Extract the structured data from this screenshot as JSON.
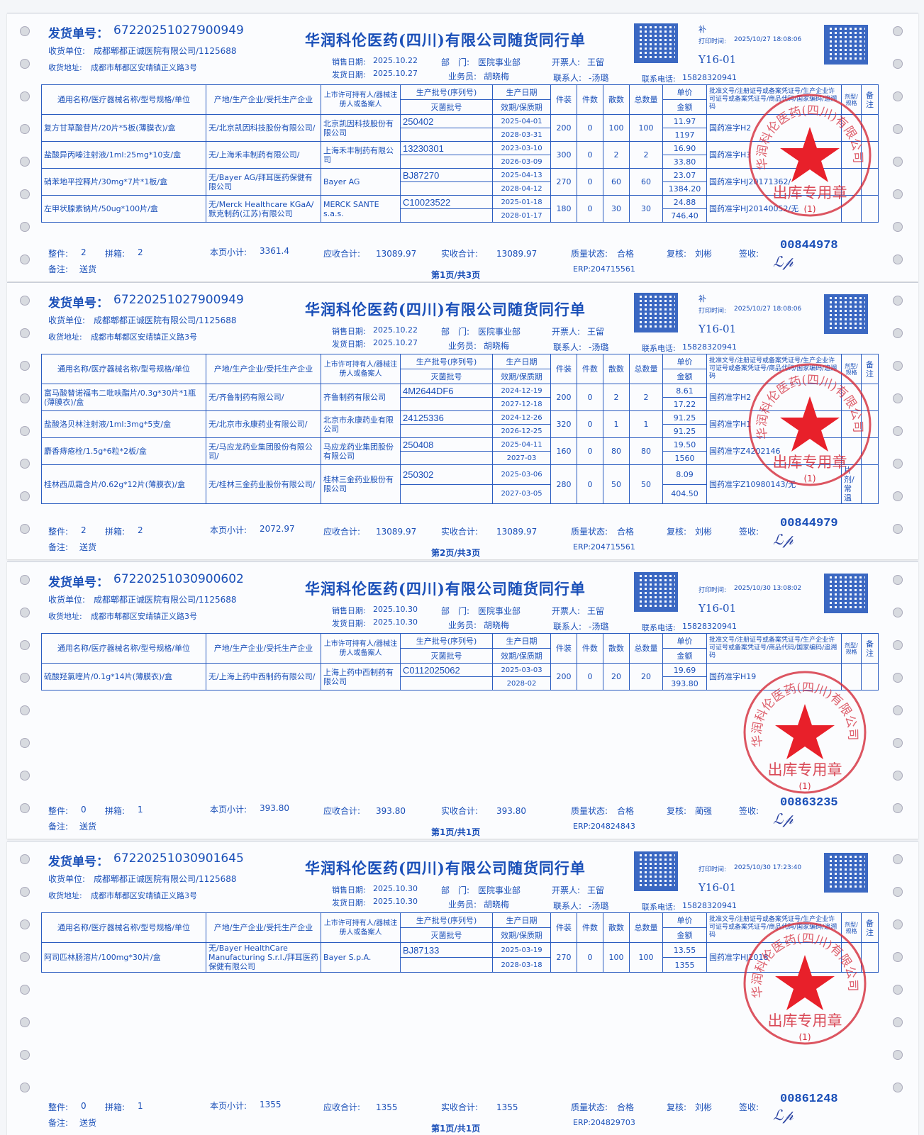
{
  "colors": {
    "ink": "#1a4fb8",
    "stamp": "#d42a3a",
    "star": "#e8202a"
  },
  "labels": {
    "no": "发货单号：",
    "recv": "收货单位:",
    "addr": "收货地址:",
    "sale_date": "销售日期:",
    "ship_date": "发货日期:",
    "dept": "部　门:",
    "sales": "业务员:",
    "issuer": "开票人:",
    "contact": "联系人:",
    "phone": "联系电话:",
    "print_time": "打印时间:",
    "whole": "整件:",
    "split": "拼箱:",
    "page_sub": "本页小计:",
    "receivable": "应收合计:",
    "received": "实收合计:",
    "quality": "质量状态:",
    "review": "复核:",
    "sign": "签收:",
    "remark": "备注:"
  },
  "headers": {
    "name": "通用名称/医疗器械名称/型号规格/单位",
    "origin": "产地/生产企业/受托生产企业",
    "holder": "上市许可持有人/器械注册人或备案人",
    "batch": "生产批号(序列号)",
    "steril": "灭菌批号",
    "prod": "生产日期",
    "exp": "效期/保质期",
    "pack": "件装",
    "pieces": "件数",
    "loose": "散数",
    "total": "总数量",
    "price": "单价",
    "amount": "金额",
    "approval": "批准文号/注册证号或备案凭证号/生产企业许可证号或备案凭证号/商品代码/国家编码/追溯码",
    "form": "剂型/规格",
    "note": "备注"
  },
  "stamp": {
    "ring": "华润科伦医药(四川)有限公司",
    "center": "出库专用章",
    "num": "(1)"
  },
  "forms": [
    {
      "no": "67220251027900949",
      "title": "华润科伦医药(四川)有限公司随货同行单",
      "recv": "成都郫都正诚医院有限公司/1125688",
      "addr": "成都市郫都区安靖镇正义路3号",
      "sale_date": "2025.10.22",
      "ship_date": "2025.10.27",
      "dept": "医院事业部",
      "sales": "胡晓梅",
      "issuer": "王留",
      "contact": "-汤璐",
      "phone": "15828320941",
      "mark": "补",
      "print_time": "2025/10/27 18:08:06",
      "code": "Y16-01",
      "rows": [
        {
          "name": "复方甘草酸苷片/20片*5板(薄膜衣)/盒",
          "origin": "无/北京凯因科技股份有限公司/",
          "holder": "北京凯因科技股份有限公司",
          "batch": "250402",
          "prod": "2025-04-01",
          "exp": "2028-03-31",
          "pack": "200",
          "pieces": "0",
          "loose": "100",
          "total": "100",
          "price": "11.97",
          "amount": "1197",
          "approval": "国药准字H2",
          "form": ""
        },
        {
          "name": "盐酸异丙嗪注射液/1ml:25mg*10支/盒",
          "origin": "无/上海禾丰制药有限公司/",
          "holder": "上海禾丰制药有限公司",
          "batch": "13230301",
          "prod": "2023-03-10",
          "exp": "2026-03-09",
          "pack": "300",
          "pieces": "0",
          "loose": "2",
          "total": "2",
          "price": "16.90",
          "amount": "33.80",
          "approval": "国药准字H3",
          "form": ""
        },
        {
          "name": "硝苯地平控释片/30mg*7片*1板/盒",
          "origin": "无/Bayer AG/拜耳医药保健有限公司",
          "holder": "Bayer AG",
          "batch": "BJ87270",
          "prod": "2025-04-13",
          "exp": "2028-04-12",
          "pack": "270",
          "pieces": "0",
          "loose": "60",
          "total": "60",
          "price": "23.07",
          "amount": "1384.20",
          "approval": "国药准字HJ20171362/",
          "form": ""
        },
        {
          "name": "左甲状腺素钠片/50ug*100片/盒",
          "origin": "无/Merck Healthcare KGaA/默克制药(江苏)有限公司",
          "holder": "MERCK SANTE s.a.s.",
          "batch": "C10023522",
          "prod": "2025-01-18",
          "exp": "2028-01-17",
          "pack": "180",
          "pieces": "0",
          "loose": "30",
          "total": "30",
          "price": "24.88",
          "amount": "746.40",
          "approval": "国药准字HJ20140052/无",
          "form": ""
        }
      ],
      "whole": "2",
      "split": "2",
      "page_sub": "3361.4",
      "receivable": "13089.97",
      "received": "13089.97",
      "quality": "合格",
      "review": "刘彬",
      "remark": "送货",
      "page": "第1页/共3页",
      "erp": "ERP:204715561",
      "serial": "00844978"
    },
    {
      "no": "67220251027900949",
      "title": "华润科伦医药(四川)有限公司随货同行单",
      "recv": "成都郫都正诚医院有限公司/1125688",
      "addr": "成都市郫都区安靖镇正义路3号",
      "sale_date": "2025.10.22",
      "ship_date": "2025.10.27",
      "dept": "医院事业部",
      "sales": "胡晓梅",
      "issuer": "王留",
      "contact": "-汤璐",
      "phone": "15828320941",
      "mark": "补",
      "print_time": "2025/10/27 18:08:06",
      "code": "Y16-01",
      "rows": [
        {
          "name": "富马酸替诺福韦二吡呋酯片/0.3g*30片*1瓶(薄膜衣)/盒",
          "origin": "无/齐鲁制药有限公司/",
          "holder": "齐鲁制药有限公司",
          "batch": "4M2644DF6",
          "prod": "2024-12-19",
          "exp": "2027-12-18",
          "pack": "200",
          "pieces": "0",
          "loose": "2",
          "total": "2",
          "price": "8.61",
          "amount": "17.22",
          "approval": "国药准字H2",
          "form": ""
        },
        {
          "name": "盐酸洛贝林注射液/1ml:3mg*5支/盒",
          "origin": "无/北京市永康药业有限公司/",
          "holder": "北京市永康药业有限公司",
          "batch": "24125336",
          "prod": "2024-12-26",
          "exp": "2026-12-25",
          "pack": "320",
          "pieces": "0",
          "loose": "1",
          "total": "1",
          "price": "91.25",
          "amount": "91.25",
          "approval": "国药准字H1",
          "form": ""
        },
        {
          "name": "麝香痔疮栓/1.5g*6粒*2板/盒",
          "origin": "无/马应龙药业集团股份有限公司/",
          "holder": "马应龙药业集团股份有限公司",
          "batch": "250408",
          "prod": "2025-04-11",
          "exp": "2027-03",
          "pack": "160",
          "pieces": "0",
          "loose": "80",
          "total": "80",
          "price": "19.50",
          "amount": "1560",
          "approval": "国药准字Z4202146",
          "form": ""
        },
        {
          "name": "桂林西瓜霜含片/0.62g*12片(薄膜衣)/盒",
          "origin": "无/桂林三金药业股份有限公司/",
          "holder": "桂林三金药业股份有限公司",
          "batch": "250302",
          "prod": "2025-03-06",
          "exp": "2027-03-05",
          "pack": "280",
          "pieces": "0",
          "loose": "50",
          "total": "50",
          "price": "8.09",
          "amount": "404.50",
          "approval": "国药准字Z10980143/无",
          "form": "片剂/常温"
        }
      ],
      "whole": "2",
      "split": "2",
      "page_sub": "2072.97",
      "receivable": "13089.97",
      "received": "13089.97",
      "quality": "合格",
      "review": "刘彬",
      "remark": "送货",
      "page": "第2页/共3页",
      "erp": "ERP:204715561",
      "serial": "00844979"
    },
    {
      "no": "67220251030900602",
      "title": "华润科伦医药(四川)有限公司随货同行单",
      "recv": "成都郫都正诚医院有限公司/1125688",
      "addr": "成都市郫都区安靖镇正义路3号",
      "sale_date": "2025.10.30",
      "ship_date": "2025.10.30",
      "dept": "医院事业部",
      "sales": "胡晓梅",
      "issuer": "王留",
      "contact": "-汤璐",
      "phone": "15828320941",
      "mark": "",
      "print_time": "2025/10/30 13:08:02",
      "code": "Y16-01",
      "rows": [
        {
          "name": "硫酸羟氯喹片/0.1g*14片(薄膜衣)/盒",
          "origin": "无/上海上药中西制药有限公司/",
          "holder": "上海上药中西制药有限公司",
          "batch": "C0112025062",
          "prod": "2025-03-03",
          "exp": "2028-02",
          "pack": "200",
          "pieces": "0",
          "loose": "20",
          "total": "20",
          "price": "19.69",
          "amount": "393.80",
          "approval": "国药准字H19",
          "form": ""
        }
      ],
      "whole": "0",
      "split": "1",
      "page_sub": "393.80",
      "receivable": "393.80",
      "received": "393.80",
      "quality": "合格",
      "review": "蔺强",
      "remark": "送货",
      "page": "第1页/共1页",
      "erp": "ERP:204824843",
      "serial": "00863235"
    },
    {
      "no": "67220251030901645",
      "title": "华润科伦医药(四川)有限公司随货同行单",
      "recv": "成都郫都正诚医院有限公司/1125688",
      "addr": "成都市郫都区安靖镇正义路3号",
      "sale_date": "2025.10.30",
      "ship_date": "2025.10.30",
      "dept": "医院事业部",
      "sales": "胡晓梅",
      "issuer": "王留",
      "contact": "-汤璐",
      "phone": "15828320941",
      "mark": "",
      "print_time": "2025/10/30 17:23:40",
      "code": "Y16-01",
      "rows": [
        {
          "name": "阿司匹林肠溶片/100mg*30片/盒",
          "origin": "无/Bayer HealthCare Manufacturing S.r.l./拜耳医药保健有限公司",
          "holder": "Bayer S.p.A.",
          "batch": "BJ87133",
          "prod": "2025-03-19",
          "exp": "2028-03-18",
          "pack": "270",
          "pieces": "0",
          "loose": "100",
          "total": "100",
          "price": "13.55",
          "amount": "1355",
          "approval": "国药准字HJ2018",
          "form": ""
        }
      ],
      "whole": "0",
      "split": "1",
      "page_sub": "1355",
      "receivable": "1355",
      "received": "1355",
      "quality": "合格",
      "review": "刘彬",
      "remark": "送货",
      "page": "第1页/共1页",
      "erp": "ERP:204829703",
      "serial": "00861248"
    }
  ]
}
